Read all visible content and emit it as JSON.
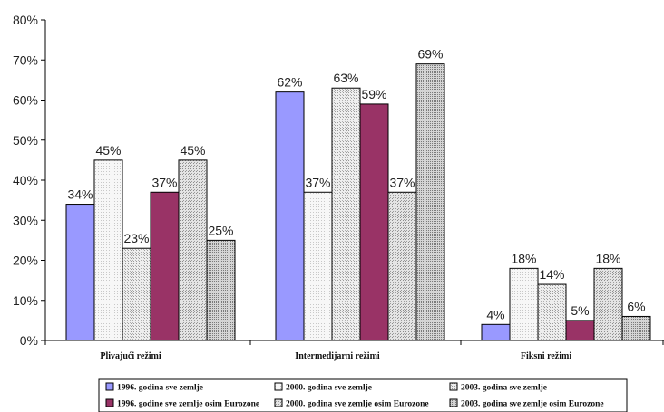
{
  "chart_data": {
    "type": "bar",
    "categories": [
      "Plivajući režimi",
      "Intermedijarni režimi",
      "Fiksni režimi"
    ],
    "ylim": [
      0,
      80
    ],
    "yticks": [
      "0%",
      "10%",
      "20%",
      "30%",
      "40%",
      "50%",
      "60%",
      "70%",
      "80%"
    ],
    "ytick_values": [
      0,
      10,
      20,
      30,
      40,
      50,
      60,
      70,
      80
    ],
    "grid": false,
    "legend_position": "bottom",
    "series": [
      {
        "name": "1996. godina sve zemlje",
        "values": [
          34,
          62,
          4
        ],
        "labels": [
          "34%",
          "62%",
          "4%"
        ],
        "color": "#9999ff",
        "pattern": "solid"
      },
      {
        "name": "2000. godina sve zemlje",
        "values": [
          45,
          37,
          18
        ],
        "labels": [
          "45%",
          "37%",
          "18%"
        ],
        "color": "#f4f4f4",
        "pattern": "fine-dots"
      },
      {
        "name": "2003. godina sve zemlje",
        "values": [
          23,
          63,
          14
        ],
        "labels": [
          "23%",
          "63%",
          "14%"
        ],
        "color": "#e6e6e6",
        "pattern": "medium-dots"
      },
      {
        "name": "1996. godine sve zemlje osim Eurozone",
        "values": [
          37,
          59,
          5
        ],
        "labels": [
          "37%",
          "59%",
          "5%"
        ],
        "color": "#993366",
        "pattern": "solid"
      },
      {
        "name": "2000. godina sve zemlje osim Eurozone",
        "values": [
          45,
          37,
          18
        ],
        "labels": [
          "45%",
          "37%",
          "18%"
        ],
        "color": "#d9d9d9",
        "pattern": "dots"
      },
      {
        "name": "2003. godina sve zemlje osim Eurozone",
        "values": [
          25,
          69,
          6
        ],
        "labels": [
          "25%",
          "69%",
          "6%"
        ],
        "color": "#bfbfbf",
        "pattern": "dense-dots"
      }
    ]
  }
}
